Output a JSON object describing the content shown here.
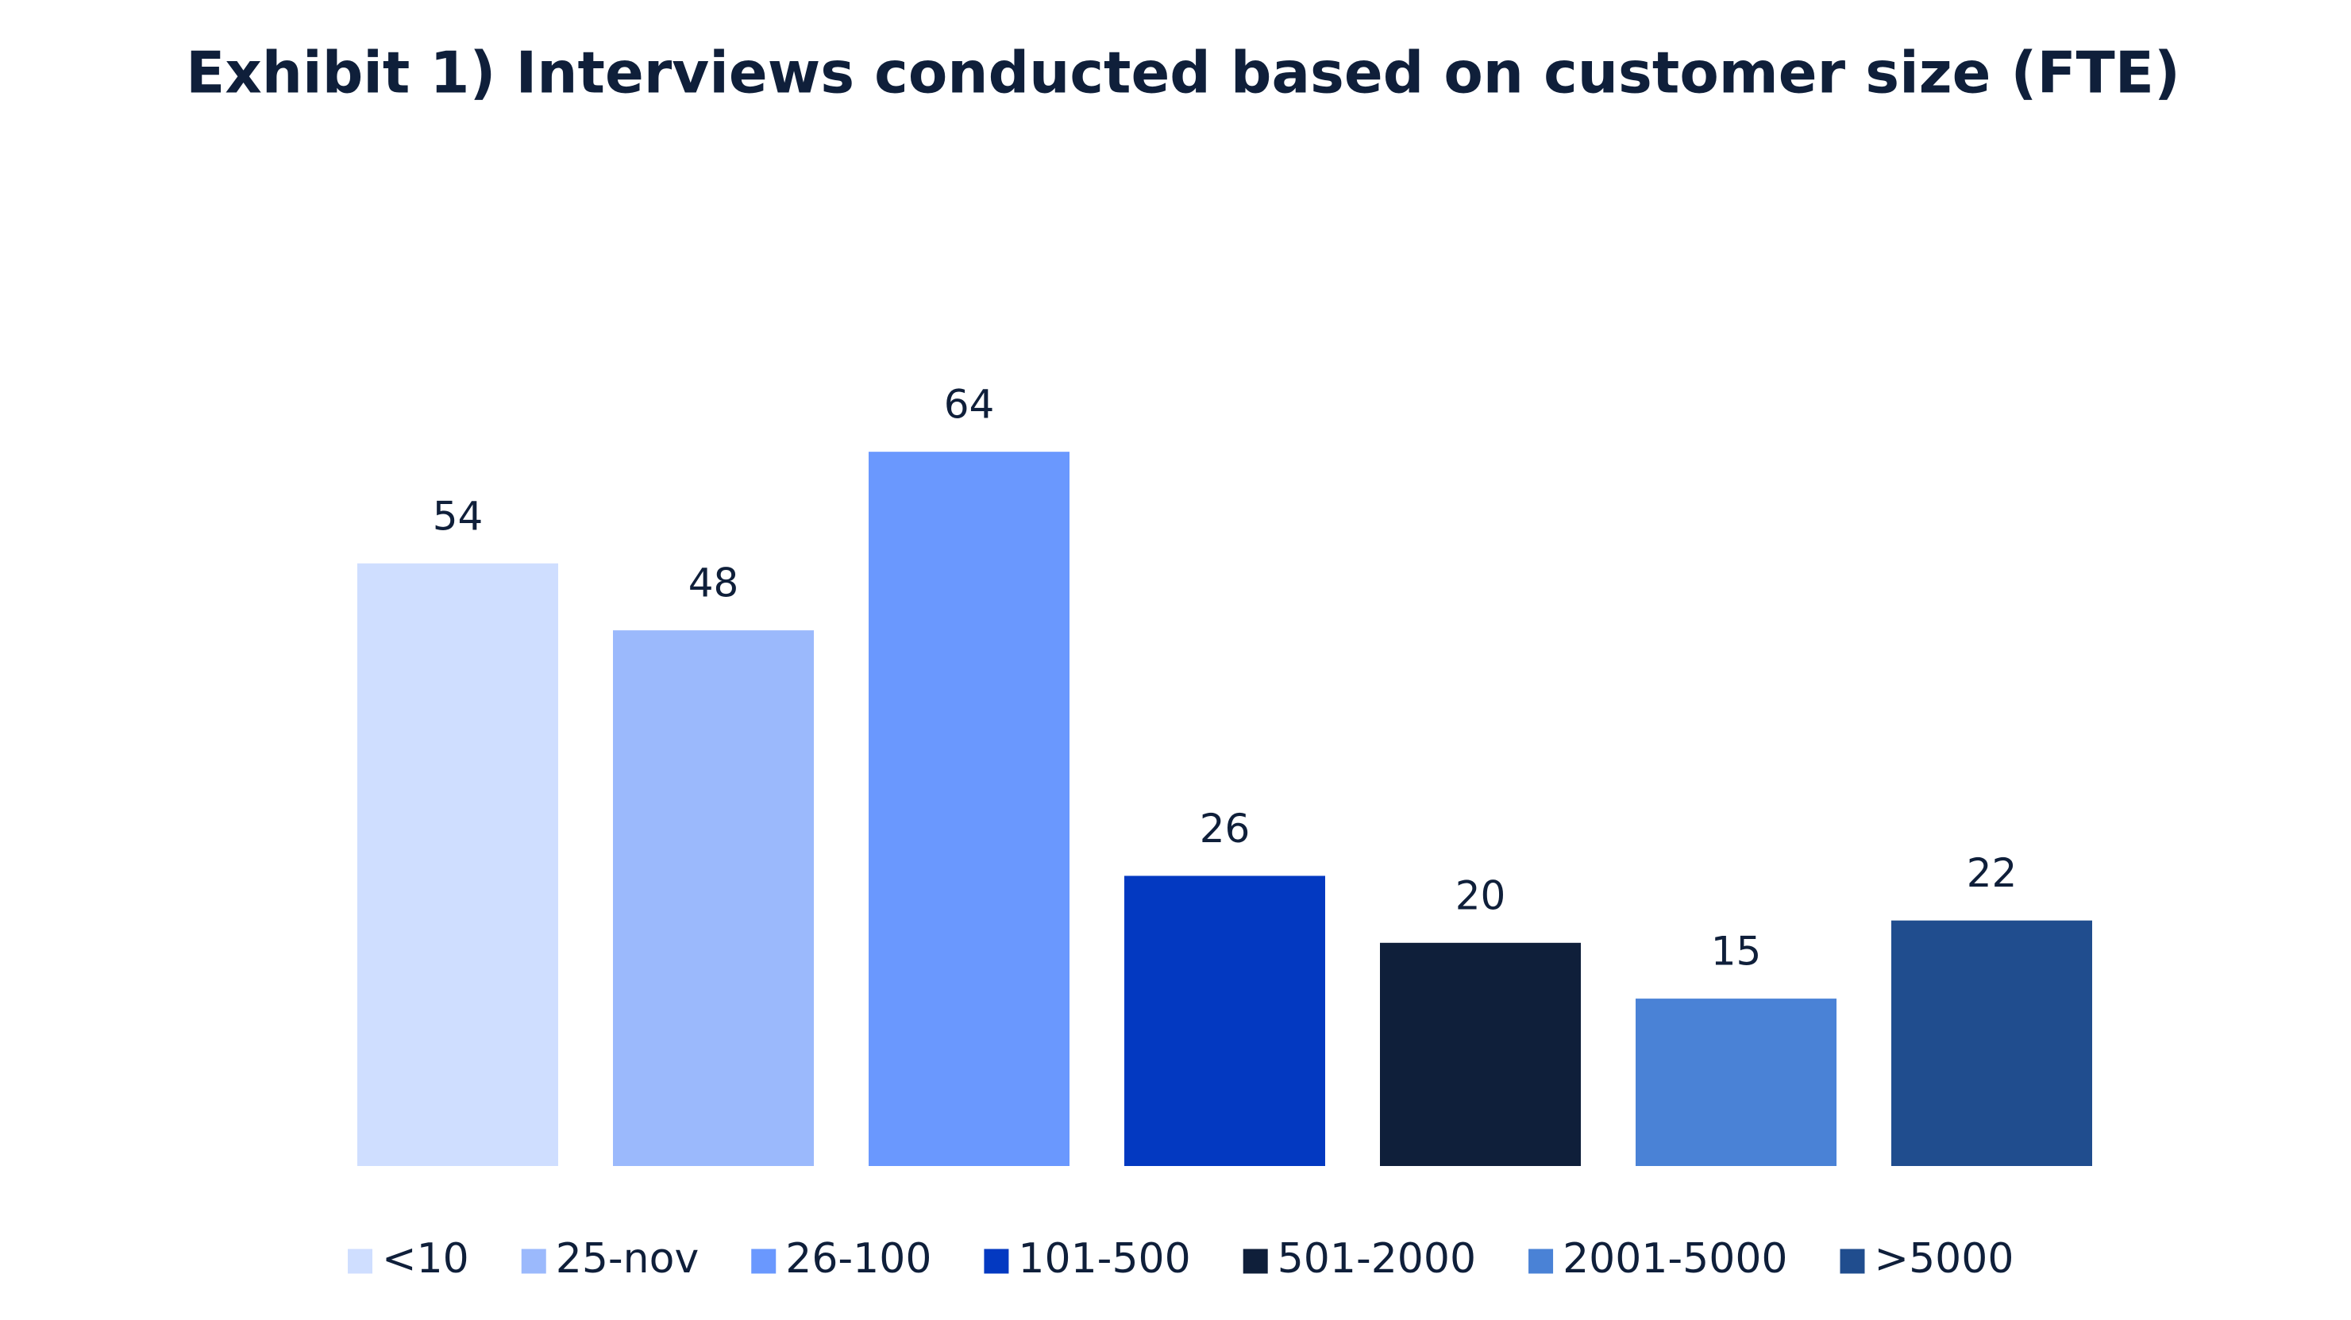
{
  "chart_data": {
    "type": "bar",
    "title": "Exhibit 1) Interviews conducted based on customer size (FTE)",
    "series": [
      {
        "name": "<10",
        "color": "#cfdeff",
        "values": [
          54
        ]
      },
      {
        "name": "25-nov",
        "color": "#9bb9fc",
        "values": [
          48
        ]
      },
      {
        "name": "26-100",
        "color": "#6a98fe",
        "values": [
          64
        ]
      },
      {
        "name": "101-500",
        "color": "#0339c1",
        "values": [
          26
        ]
      },
      {
        "name": "501-2000",
        "color": "#0f1f3a",
        "values": [
          20
        ]
      },
      {
        "name": "2001-5000",
        "color": "#4a82d6",
        "values": [
          15
        ]
      },
      {
        "name": ">5000",
        "color": "#204d8e",
        "values": [
          22
        ]
      }
    ],
    "legend": "bottom"
  }
}
